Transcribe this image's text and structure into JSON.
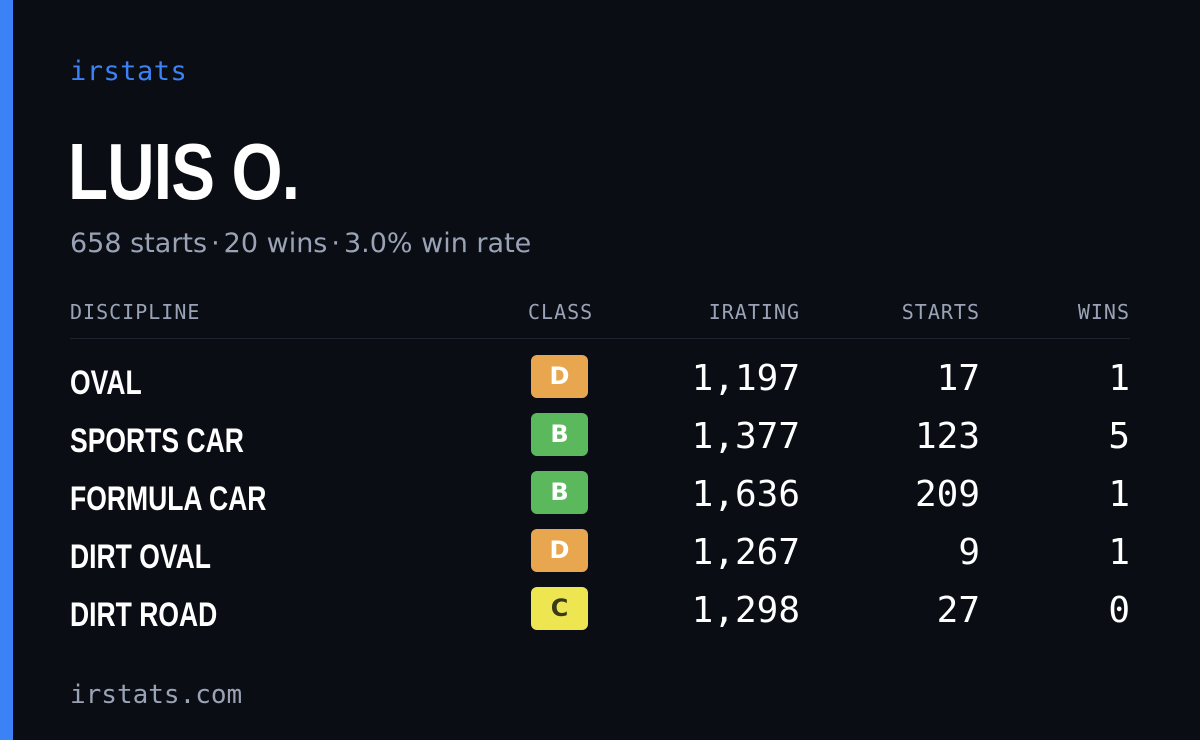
{
  "brand": "irstats",
  "driver": {
    "name": "LUIS O.",
    "starts_text": "658 starts",
    "wins_text": "20 wins",
    "win_rate_text": "3.0% win rate",
    "separator": "·"
  },
  "table": {
    "headers": {
      "discipline": "DISCIPLINE",
      "class": "CLASS",
      "irating": "IRATING",
      "starts": "STARTS",
      "wins": "WINS"
    },
    "rows": [
      {
        "discipline": "OVAL",
        "class": "D",
        "class_color": "#e8a74e",
        "class_text_color": "#ffffff",
        "irating": "1,197",
        "starts": "17",
        "wins": "1"
      },
      {
        "discipline": "SPORTS CAR",
        "class": "B",
        "class_color": "#5cb85c",
        "class_text_color": "#ffffff",
        "irating": "1,377",
        "starts": "123",
        "wins": "5"
      },
      {
        "discipline": "FORMULA CAR",
        "class": "B",
        "class_color": "#5cb85c",
        "class_text_color": "#ffffff",
        "irating": "1,636",
        "starts": "209",
        "wins": "1"
      },
      {
        "discipline": "DIRT OVAL",
        "class": "D",
        "class_color": "#e8a74e",
        "class_text_color": "#ffffff",
        "irating": "1,267",
        "starts": "9",
        "wins": "1"
      },
      {
        "discipline": "DIRT ROAD",
        "class": "C",
        "class_color": "#ede650",
        "class_text_color": "#3a3a1a",
        "irating": "1,298",
        "starts": "27",
        "wins": "0"
      }
    ]
  },
  "footer": "irstats.com",
  "colors": {
    "accent": "#3b82f6",
    "background": "#0a0d14",
    "muted_text": "#9aa3b5"
  }
}
